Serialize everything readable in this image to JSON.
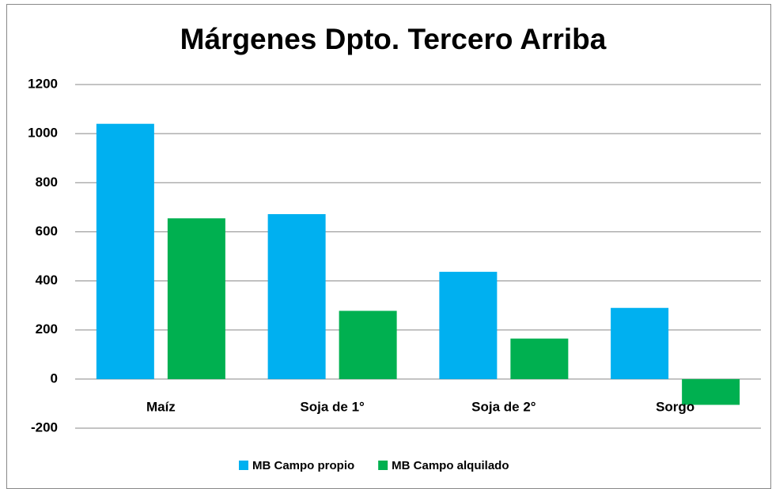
{
  "chart_data": {
    "type": "bar",
    "title": "Márgenes Dpto. Tercero Arriba",
    "categories": [
      "Maíz",
      "Soja de 1°",
      "Soja de 2°",
      "Sorgo"
    ],
    "series": [
      {
        "name": "MB Campo propio",
        "color": "#00b0f0",
        "values": [
          1040,
          672,
          437,
          290
        ]
      },
      {
        "name": "MB Campo alquilado",
        "color": "#00b050",
        "values": [
          655,
          278,
          165,
          -105
        ]
      }
    ],
    "ylim": [
      -200,
      1200
    ],
    "yticks": [
      -200,
      0,
      200,
      400,
      600,
      800,
      1000,
      1200
    ],
    "grid": true,
    "legend": "bottom"
  }
}
